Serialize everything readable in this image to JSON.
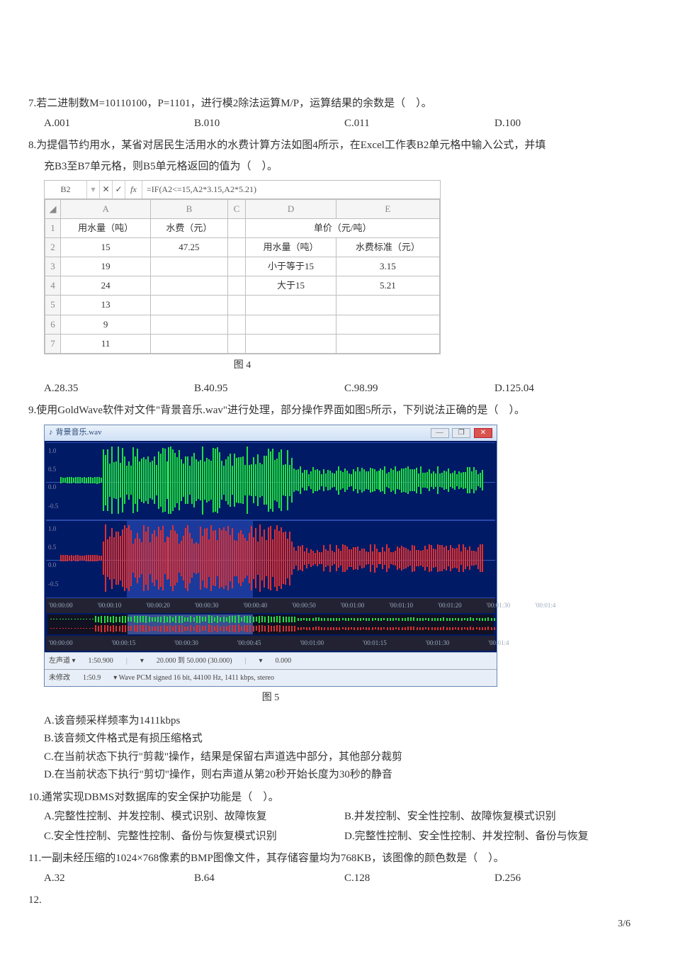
{
  "q7": {
    "text": "7.若二进制数M=10110100，P=1101，进行模2除法运算M/P，运算结果的余数是（　）。",
    "opts": [
      "A.001",
      "B.010",
      "C.011",
      "D.100"
    ]
  },
  "q8": {
    "line1": "8.为提倡节约用水，某省对居民生活用水的水费计算方法如图4所示，在Excel工作表B2单元格中输入公式，并填",
    "line2": "充B3至B7单元格，则B5单元格返回的值为（　）。",
    "fx_cell": "B2",
    "fx_formula": "=IF(A2<=15,A2*3.15,A2*5.21)",
    "cols": [
      "A",
      "B",
      "C",
      "D",
      "E"
    ],
    "rows": [
      {
        "r": "1",
        "A": "用水量（吨）",
        "B": "水费（元）",
        "C": "",
        "D": "单价（元/吨）",
        "E": "",
        "merge_de": true
      },
      {
        "r": "2",
        "A": "15",
        "B": "47.25",
        "C": "",
        "D": "用水量（吨）",
        "E": "水费标准（元）"
      },
      {
        "r": "3",
        "A": "19",
        "B": "",
        "C": "",
        "D": "小于等于15",
        "E": "3.15"
      },
      {
        "r": "4",
        "A": "24",
        "B": "",
        "C": "",
        "D": "大于15",
        "E": "5.21"
      },
      {
        "r": "5",
        "A": "13",
        "B": "",
        "C": "",
        "D": "",
        "E": ""
      },
      {
        "r": "6",
        "A": "9",
        "B": "",
        "C": "",
        "D": "",
        "E": ""
      },
      {
        "r": "7",
        "A": "11",
        "B": "",
        "C": "",
        "D": "",
        "E": ""
      }
    ],
    "caption": "图 4",
    "opts": [
      "A.28.35",
      "B.40.95",
      "C.98.99",
      "D.125.04"
    ]
  },
  "q9": {
    "text": "9.使用GoldWave软件对文件\"背景音乐.wav\"进行处理，部分操作界面如图5所示，下列说法正确的是（　）。",
    "gw_title": "背景音乐.wav",
    "timeline": [
      "'00:00:00",
      "'00:00:10",
      "'00:00:20",
      "'00:00:30",
      "'00:00:40",
      "'00:00:50",
      "'00:01:00",
      "'00:01:10",
      "'00:01:20",
      "'00:01:30",
      "'00:01:4"
    ],
    "overview_ticks": [
      "'00:00:00",
      "'00:00:15",
      "'00:00:30",
      "'00:00:45",
      "'00:01:00",
      "'00:01:15",
      "'00:01:30",
      "'00:01:4"
    ],
    "ylabels_top": [
      "1.0",
      "0.5",
      "0.0",
      "-0.5"
    ],
    "ylabels_bot": [
      "1.0",
      "0.5",
      "0.0",
      "-0.5"
    ],
    "selection": {
      "start_pct": 18,
      "end_pct": 46
    },
    "top_wave_color": "#20e040",
    "bot_wave_color": "#e03030",
    "status": {
      "left1": "左声道 ▾",
      "left2": "1:50.900",
      "mid1": "▾",
      "mid2": "20.000 到 50.000 (30.000)",
      "right1": "▾",
      "right2": "0.000",
      "mod": "未修改",
      "dur": "1:50.9",
      "fmt": "▾ Wave PCM signed 16 bit, 44100 Hz, 1411 kbps, stereo"
    },
    "caption": "图 5",
    "opts": [
      "A.该音频采样频率为1411kbps",
      "B.该音频文件格式是有损压缩格式",
      "C.在当前状态下执行\"剪裁\"操作，结果是保留右声道选中部分，其他部分裁剪",
      "D.在当前状态下执行\"剪切\"操作，则右声道从第20秒开始长度为30秒的静音"
    ]
  },
  "q10": {
    "text": "10.通常实现DBMS对数据库的安全保护功能是（　）。",
    "opts": [
      "A.完整性控制、并发控制、模式识别、故障恢复",
      "B.并发控制、安全性控制、故障恢复模式识别",
      "C.安全性控制、完整性控制、备份与恢复模式识别",
      "D.完整性控制、安全性控制、并发控制、备份与恢复"
    ]
  },
  "q11": {
    "text": "11.一副未经压缩的1024×768像素的BMP图像文件，其存储容量均为768KB，该图像的颜色数是（　）。",
    "opts": [
      "A.32",
      "B.64",
      "C.128",
      "D.256"
    ]
  },
  "q12": {
    "text": "12."
  },
  "page": "3/6"
}
